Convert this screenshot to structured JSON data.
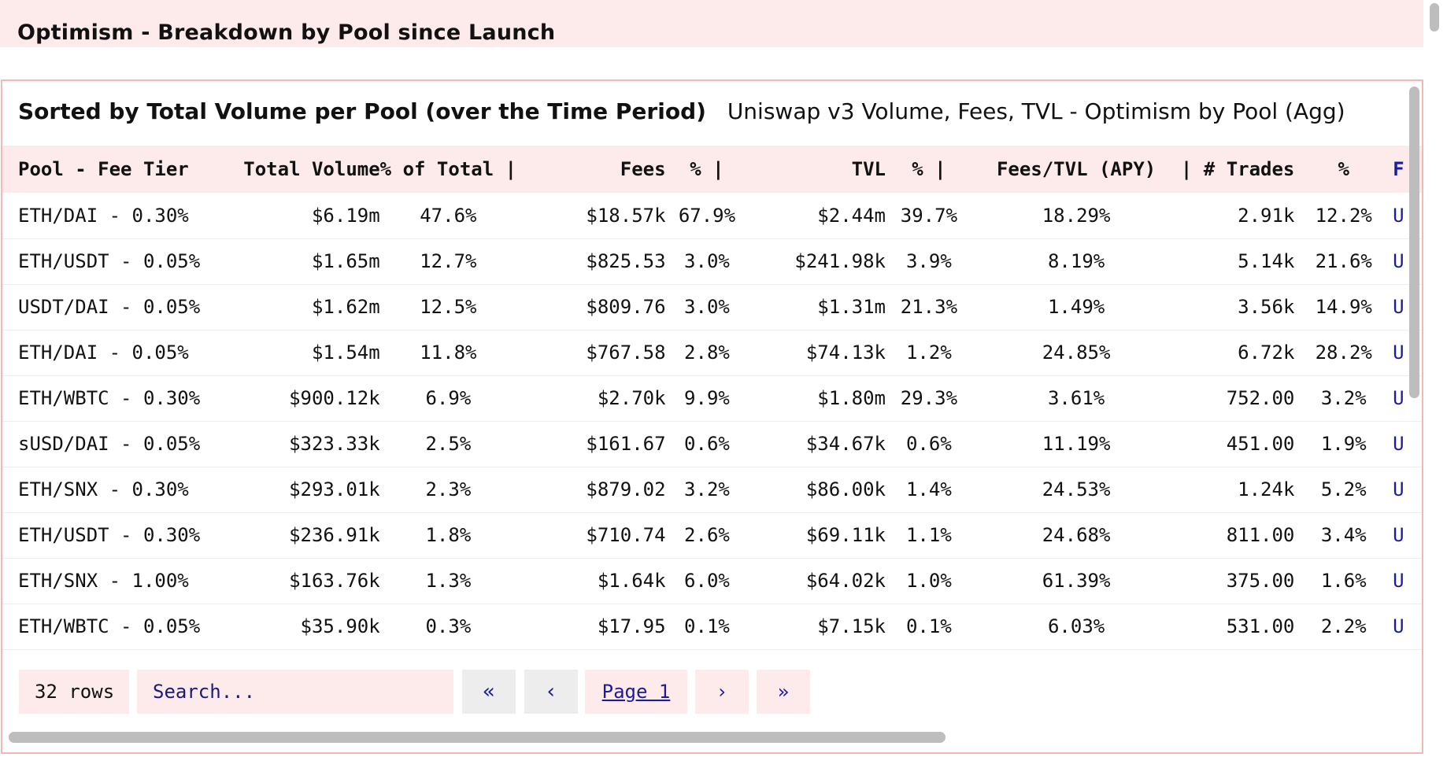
{
  "section_title": "Optimism - Breakdown by Pool since Launch",
  "panel": {
    "title_bold": "Sorted by Total Volume per Pool (over the Time Period)",
    "title_sub": "Uniswap v3 Volume, Fees, TVL - Optimism by Pool (Agg)"
  },
  "table": {
    "headers": [
      "Pool - Fee Tier",
      "Total Volume",
      "% of Total |",
      "Fees",
      "% |",
      "TVL",
      "% |",
      "Fees/TVL (APY)",
      "| # Trades",
      "%",
      "F"
    ],
    "rows": [
      [
        "ETH/DAI - 0.30%",
        "$6.19m",
        "47.6%",
        "$18.57k",
        "67.9%",
        "$2.44m",
        "39.7%",
        "18.29%",
        "2.91k",
        "12.2%",
        "U"
      ],
      [
        "ETH/USDT - 0.05%",
        "$1.65m",
        "12.7%",
        "$825.53",
        "3.0%",
        "$241.98k",
        "3.9%",
        "8.19%",
        "5.14k",
        "21.6%",
        "U"
      ],
      [
        "USDT/DAI - 0.05%",
        "$1.62m",
        "12.5%",
        "$809.76",
        "3.0%",
        "$1.31m",
        "21.3%",
        "1.49%",
        "3.56k",
        "14.9%",
        "U"
      ],
      [
        "ETH/DAI - 0.05%",
        "$1.54m",
        "11.8%",
        "$767.58",
        "2.8%",
        "$74.13k",
        "1.2%",
        "24.85%",
        "6.72k",
        "28.2%",
        "U"
      ],
      [
        "ETH/WBTC - 0.30%",
        "$900.12k",
        "6.9%",
        "$2.70k",
        "9.9%",
        "$1.80m",
        "29.3%",
        "3.61%",
        "752.00",
        "3.2%",
        "U"
      ],
      [
        "sUSD/DAI - 0.05%",
        "$323.33k",
        "2.5%",
        "$161.67",
        "0.6%",
        "$34.67k",
        "0.6%",
        "11.19%",
        "451.00",
        "1.9%",
        "U"
      ],
      [
        "ETH/SNX - 0.30%",
        "$293.01k",
        "2.3%",
        "$879.02",
        "3.2%",
        "$86.00k",
        "1.4%",
        "24.53%",
        "1.24k",
        "5.2%",
        "U"
      ],
      [
        "ETH/USDT - 0.30%",
        "$236.91k",
        "1.8%",
        "$710.74",
        "2.6%",
        "$69.11k",
        "1.1%",
        "24.68%",
        "811.00",
        "3.4%",
        "U"
      ],
      [
        "ETH/SNX - 1.00%",
        "$163.76k",
        "1.3%",
        "$1.64k",
        "6.0%",
        "$64.02k",
        "1.0%",
        "61.39%",
        "375.00",
        "1.6%",
        "U"
      ],
      [
        "ETH/WBTC - 0.05%",
        "$35.90k",
        "0.3%",
        "$17.95",
        "0.1%",
        "$7.15k",
        "0.1%",
        "6.03%",
        "531.00",
        "2.2%",
        "U"
      ]
    ]
  },
  "pager": {
    "rows_label": "32 rows",
    "search_placeholder": "Search...",
    "first_icon": "«",
    "prev_icon": "‹",
    "page_label": "Page 1",
    "next_icon": "›",
    "last_icon": "»"
  }
}
